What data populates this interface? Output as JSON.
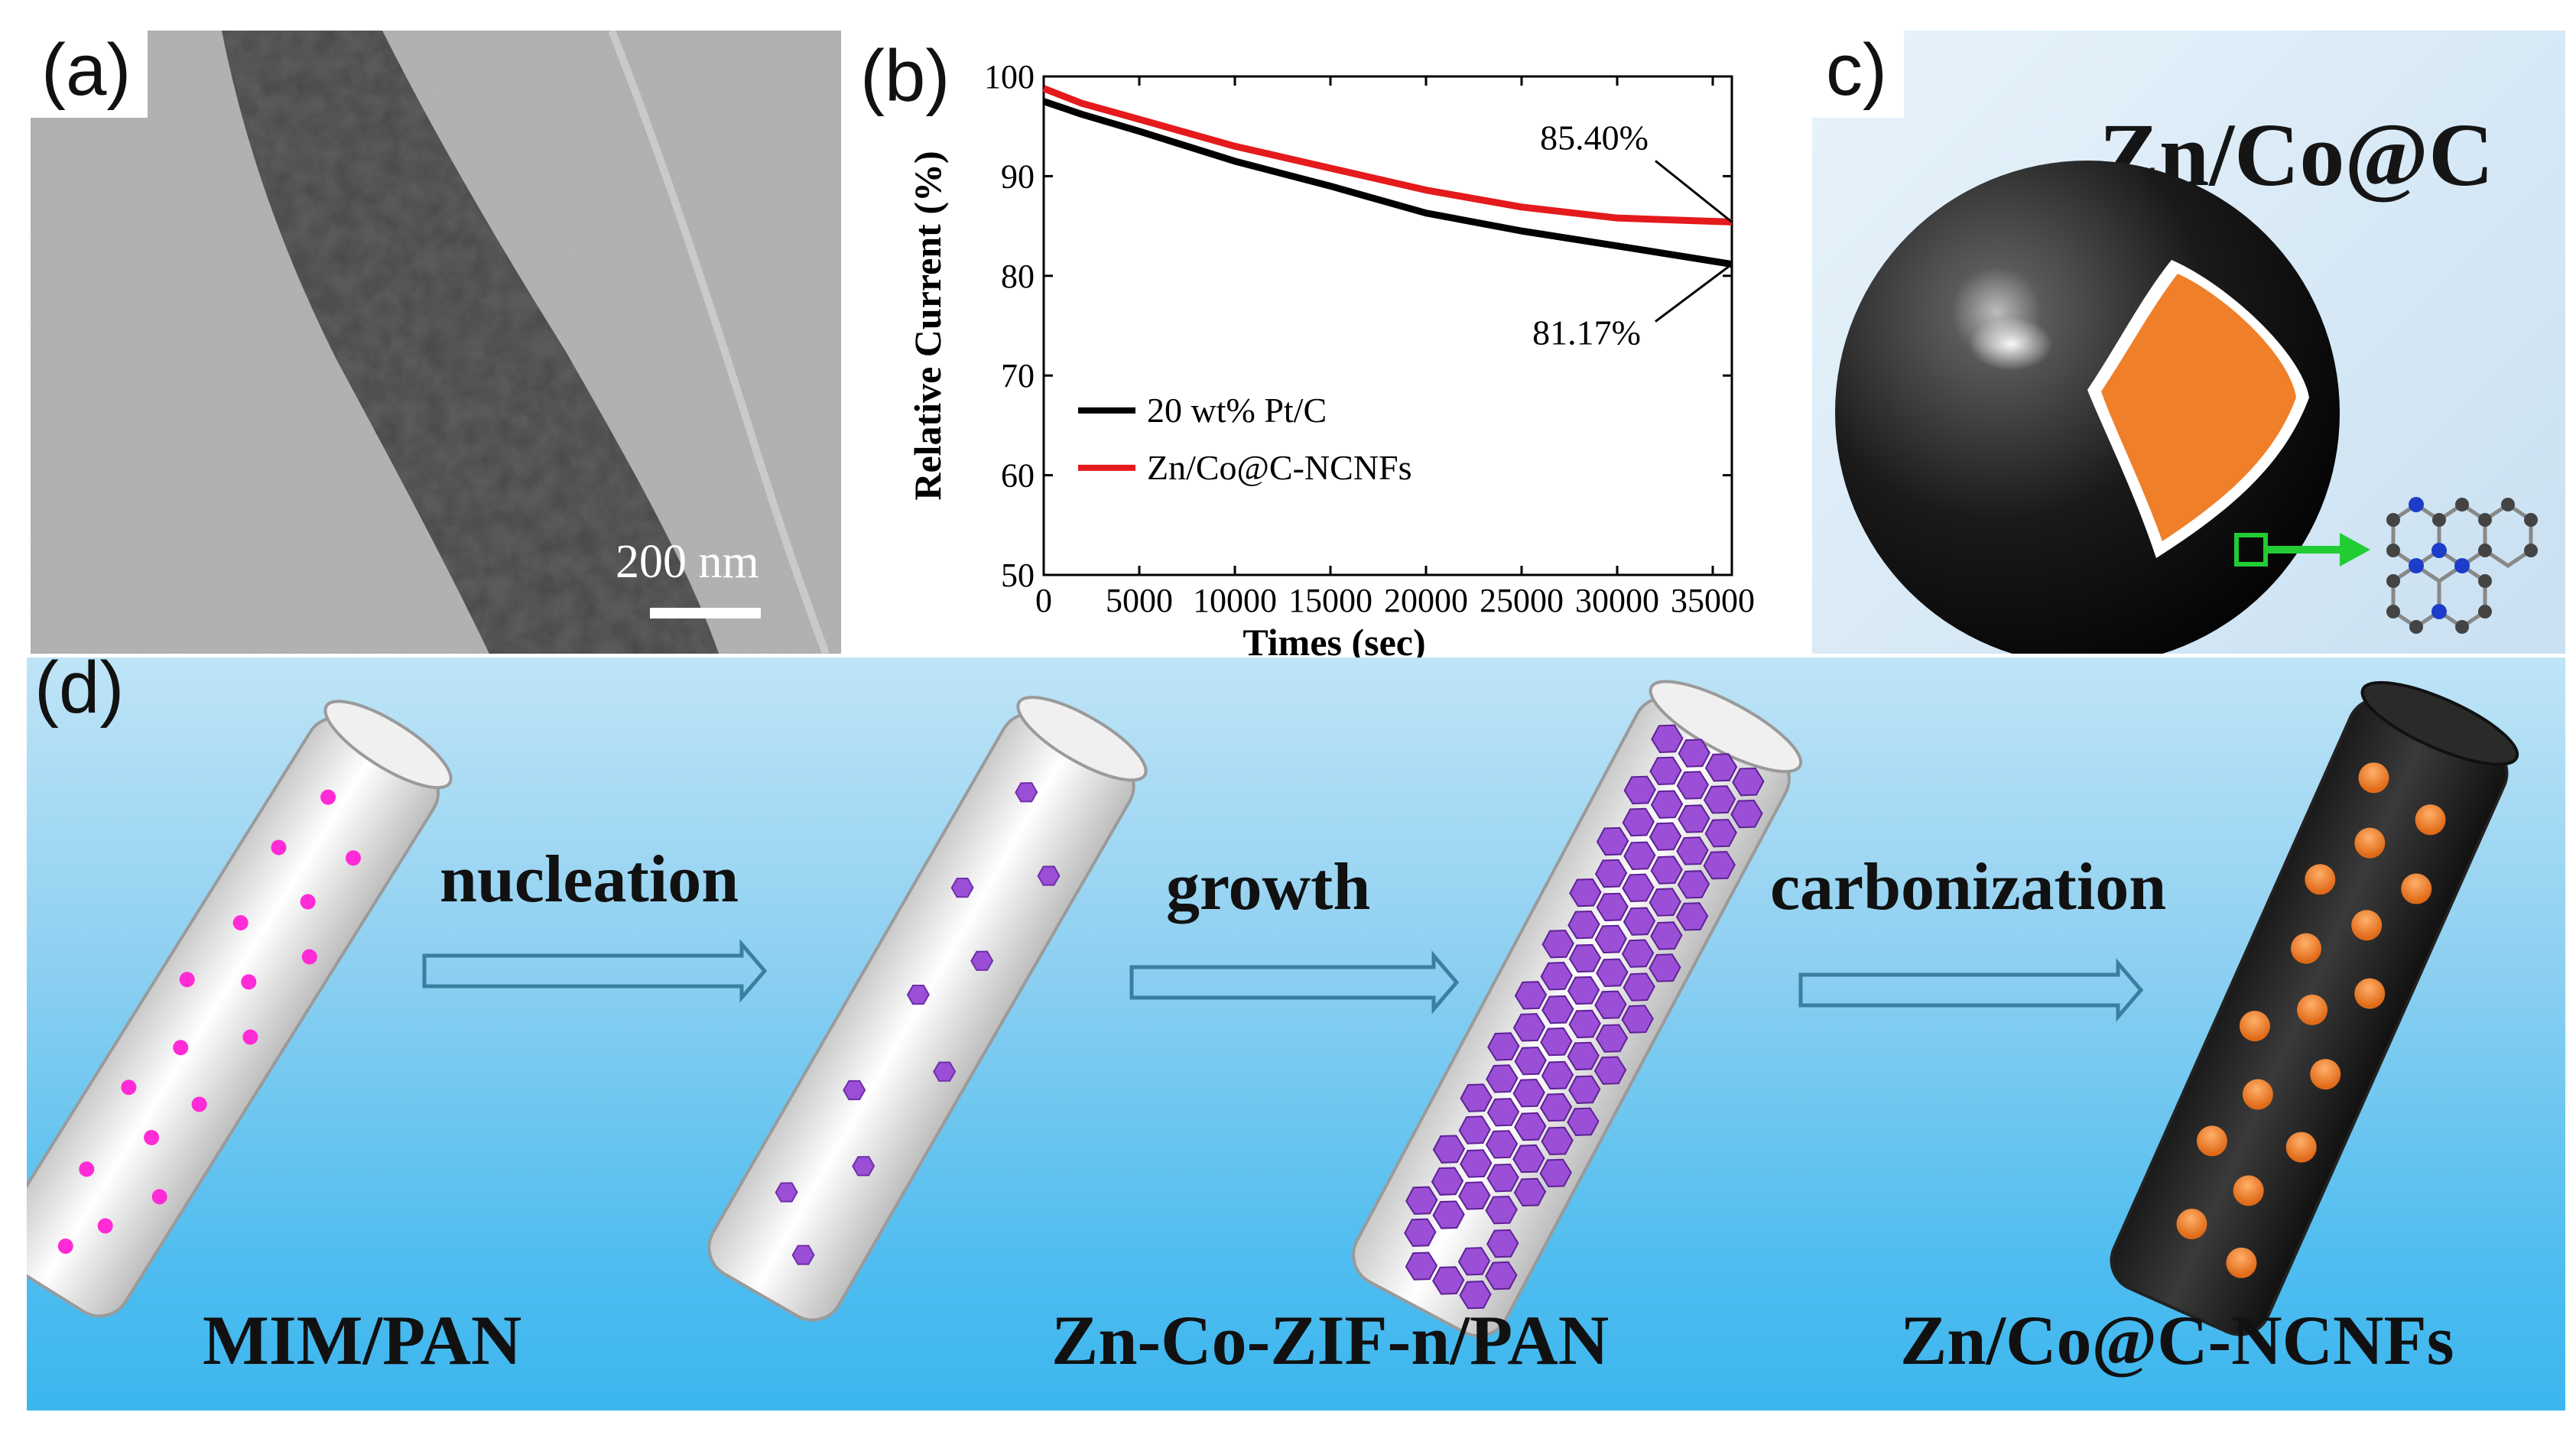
{
  "panels": {
    "a": {
      "label": "(a)",
      "scale_bar": "200 nm"
    },
    "b": {
      "label": "(b)"
    },
    "c": {
      "label": "c)",
      "title": "Zn/Co@C"
    },
    "d": {
      "label": "(d)",
      "steps": [
        "nucleation",
        "growth",
        "carbonization"
      ],
      "stages": [
        "MIM/PAN",
        "Zn-Co-ZIF-n/PAN",
        "Zn/Co@C-NCNFs"
      ]
    }
  },
  "chart_data": {
    "type": "line",
    "title": "",
    "xlabel": "Times (sec)",
    "ylabel": "Relative Current (%)",
    "xlim": [
      0,
      36000
    ],
    "ylim": [
      50,
      100
    ],
    "xticks": [
      0,
      5000,
      10000,
      15000,
      20000,
      25000,
      30000,
      35000
    ],
    "yticks": [
      50,
      60,
      70,
      80,
      90,
      100
    ],
    "legend_position": "lower-left",
    "series": [
      {
        "name": "20 wt% Pt/C",
        "color": "#000000",
        "x": [
          0,
          2000,
          5000,
          10000,
          15000,
          20000,
          25000,
          30000,
          36000
        ],
        "y": [
          97.5,
          96.2,
          94.5,
          91.5,
          89.0,
          86.3,
          84.5,
          83.0,
          81.17
        ]
      },
      {
        "name": "Zn/Co@C-NCNFs",
        "color": "#e41a1c",
        "x": [
          0,
          2000,
          5000,
          10000,
          15000,
          20000,
          25000,
          30000,
          36000
        ],
        "y": [
          98.8,
          97.3,
          95.7,
          93.0,
          90.8,
          88.6,
          86.9,
          85.8,
          85.4
        ]
      }
    ],
    "annotations": [
      {
        "text": "85.40%",
        "x": 36000,
        "y": 85.4
      },
      {
        "text": "81.17%",
        "x": 36000,
        "y": 81.17
      }
    ]
  },
  "colors": {
    "pink_dot": "#ff2bd6",
    "zif_purple": "#9b4fd6",
    "orange_particle": "#f07f2a",
    "arrow_green": "#22cc33"
  }
}
